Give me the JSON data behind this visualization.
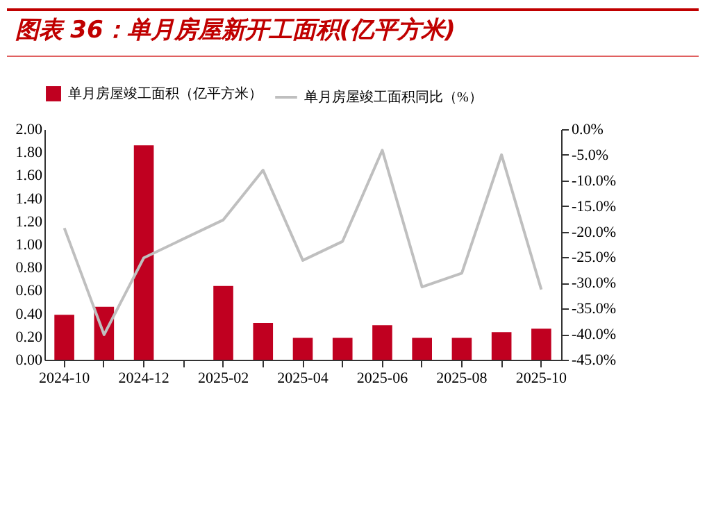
{
  "chart_data": {
    "type": "bar",
    "title": "图表 36：单月房屋新开工面积(亿平方米)",
    "categories": [
      "2024-10",
      null,
      "2024-12",
      null,
      "2025-02",
      null,
      "2025-04",
      null,
      "2025-06",
      null,
      "2025-08",
      null,
      "2025-10"
    ],
    "series": [
      {
        "name": "单月房屋竣工面积（亿平方米）",
        "color": "#c00020",
        "values": [
          0.39,
          0.46,
          1.86,
          null,
          0.64,
          0.32,
          0.19,
          0.19,
          0.3,
          0.19,
          0.19,
          0.24,
          0.27
        ]
      },
      {
        "name": "单月房屋竣工面积同比（%）",
        "type": "line",
        "axis": "y2",
        "color": "#bfbfbf",
        "values": [
          -19.3,
          -40.1,
          -25.1,
          null,
          -17.7,
          -8.0,
          -25.6,
          -21.9,
          -4.1,
          -30.8,
          -28.1,
          -5.0,
          -31.3
        ]
      }
    ],
    "ylim": [
      0,
      2
    ],
    "yticks": [
      {
        "value": 0,
        "label": "0.00"
      },
      {
        "value": 0.2,
        "label": "0.20"
      },
      {
        "value": 0.4,
        "label": "0.40"
      },
      {
        "value": 0.6,
        "label": "0.60"
      },
      {
        "value": 0.8,
        "label": "0.80"
      },
      {
        "value": 1,
        "label": "1.00"
      },
      {
        "value": 1.2,
        "label": "1.20"
      },
      {
        "value": 1.4,
        "label": "1.40"
      },
      {
        "value": 1.6,
        "label": "1.60"
      },
      {
        "value": 1.8,
        "label": "1.80"
      },
      {
        "value": 2,
        "label": "2.00"
      }
    ],
    "y2lim": [
      -45,
      0
    ],
    "y2ticks": [
      {
        "value": 0,
        "label": "0.0%"
      },
      {
        "value": -5,
        "label": "-5.0%"
      },
      {
        "value": -10,
        "label": "-10.0%"
      },
      {
        "value": -15,
        "label": "-15.0%"
      },
      {
        "value": -20,
        "label": "-20.0%"
      },
      {
        "value": -25,
        "label": "-25.0%"
      },
      {
        "value": -30,
        "label": "-30.0%"
      },
      {
        "value": -35,
        "label": "-35.0%"
      },
      {
        "value": -40,
        "label": "-40.0%"
      },
      {
        "value": -45,
        "label": "-45.0%"
      }
    ],
    "grid": false,
    "legend": "top"
  }
}
